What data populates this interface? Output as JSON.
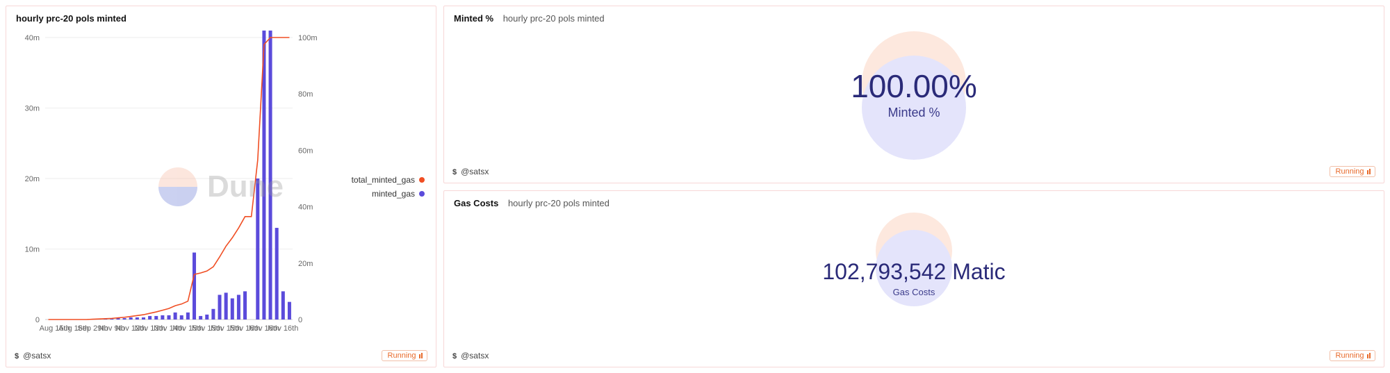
{
  "panels": {
    "minted": {
      "title": "Minted %",
      "subtitle": "hourly prc-20 pols minted",
      "value": "100.00%",
      "label": "Minted %",
      "author": "@satsx",
      "status": "Running",
      "circle_top_color": "#fde8de",
      "circle_bottom_color": "#e4e4fb",
      "value_color": "#2a2a78"
    },
    "gas": {
      "title": "Gas Costs",
      "subtitle": "hourly prc-20 pols minted",
      "value": "102,793,542 Matic",
      "label": "Gas Costs",
      "author": "@satsx",
      "status": "Running",
      "circle_top_color": "#fde8de",
      "circle_bottom_color": "#e4e4fb",
      "value_color": "#2a2a78"
    },
    "chart": {
      "title": "hourly prc-20 pols minted",
      "author": "@satsx",
      "status": "Running",
      "watermark": "Dune",
      "type": "bar+line_dual_axis",
      "background_color": "#ffffff",
      "grid_color": "#eeeeee",
      "axis_color": "#cccccc",
      "label_color": "#666666",
      "label_fontsize": 11,
      "x_labels": [
        "Aug 15th",
        "Aug 16th",
        "Sep 29th",
        "Nov 9th",
        "Nov 12th",
        "Nov 13th",
        "Nov 14th",
        "Nov 15th",
        "Nov 15th",
        "Nov 15th",
        "Nov 16th",
        "Nov 16th",
        "Nov 16th"
      ],
      "left_axis": {
        "label_suffix": "m",
        "min": 0,
        "max": 40,
        "step": 10,
        "ticks": [
          "0",
          "10m",
          "20m",
          "30m",
          "40m"
        ]
      },
      "right_axis": {
        "label_suffix": "m",
        "min": 0,
        "max": 100,
        "step": 20,
        "ticks": [
          "0",
          "20m",
          "40m",
          "60m",
          "80m",
          "100m"
        ]
      },
      "series": [
        {
          "name": "minted_gas",
          "type": "bar",
          "axis": "left",
          "color": "#5b4bdb",
          "bar_width": 0.55,
          "values": [
            0,
            0,
            0,
            0,
            0,
            0,
            0,
            0.05,
            0.05,
            0.1,
            0.1,
            0.2,
            0.2,
            0.3,
            0.3,
            0.3,
            0.5,
            0.5,
            0.6,
            0.6,
            1.0,
            0.6,
            1.0,
            9.5,
            0.5,
            0.7,
            1.5,
            3.5,
            3.8,
            3.0,
            3.5,
            4.0,
            0,
            20.0,
            41.0,
            41.0,
            13.0,
            4.0,
            2.5
          ]
        },
        {
          "name": "total_minted_gas",
          "type": "line",
          "axis": "right",
          "color": "#f04e23",
          "line_width": 1.6,
          "values": [
            0,
            0,
            0,
            0,
            0,
            0,
            0,
            0.1,
            0.2,
            0.3,
            0.4,
            0.6,
            0.8,
            1.1,
            1.4,
            1.7,
            2.2,
            2.7,
            3.3,
            3.9,
            4.9,
            5.5,
            6.5,
            16,
            16.5,
            17.2,
            18.7,
            22.2,
            26,
            29,
            32.5,
            36.5,
            36.5,
            56.5,
            97.5,
            100,
            100,
            100,
            100
          ]
        }
      ],
      "legend": [
        {
          "label": "total_minted_gas",
          "color": "#f04e23"
        },
        {
          "label": "minted_gas",
          "color": "#5b4bdb"
        }
      ]
    }
  },
  "colors": {
    "panel_border": "#f7d7d7",
    "status_text": "#e86a2a",
    "status_border": "#f2c0a8"
  }
}
